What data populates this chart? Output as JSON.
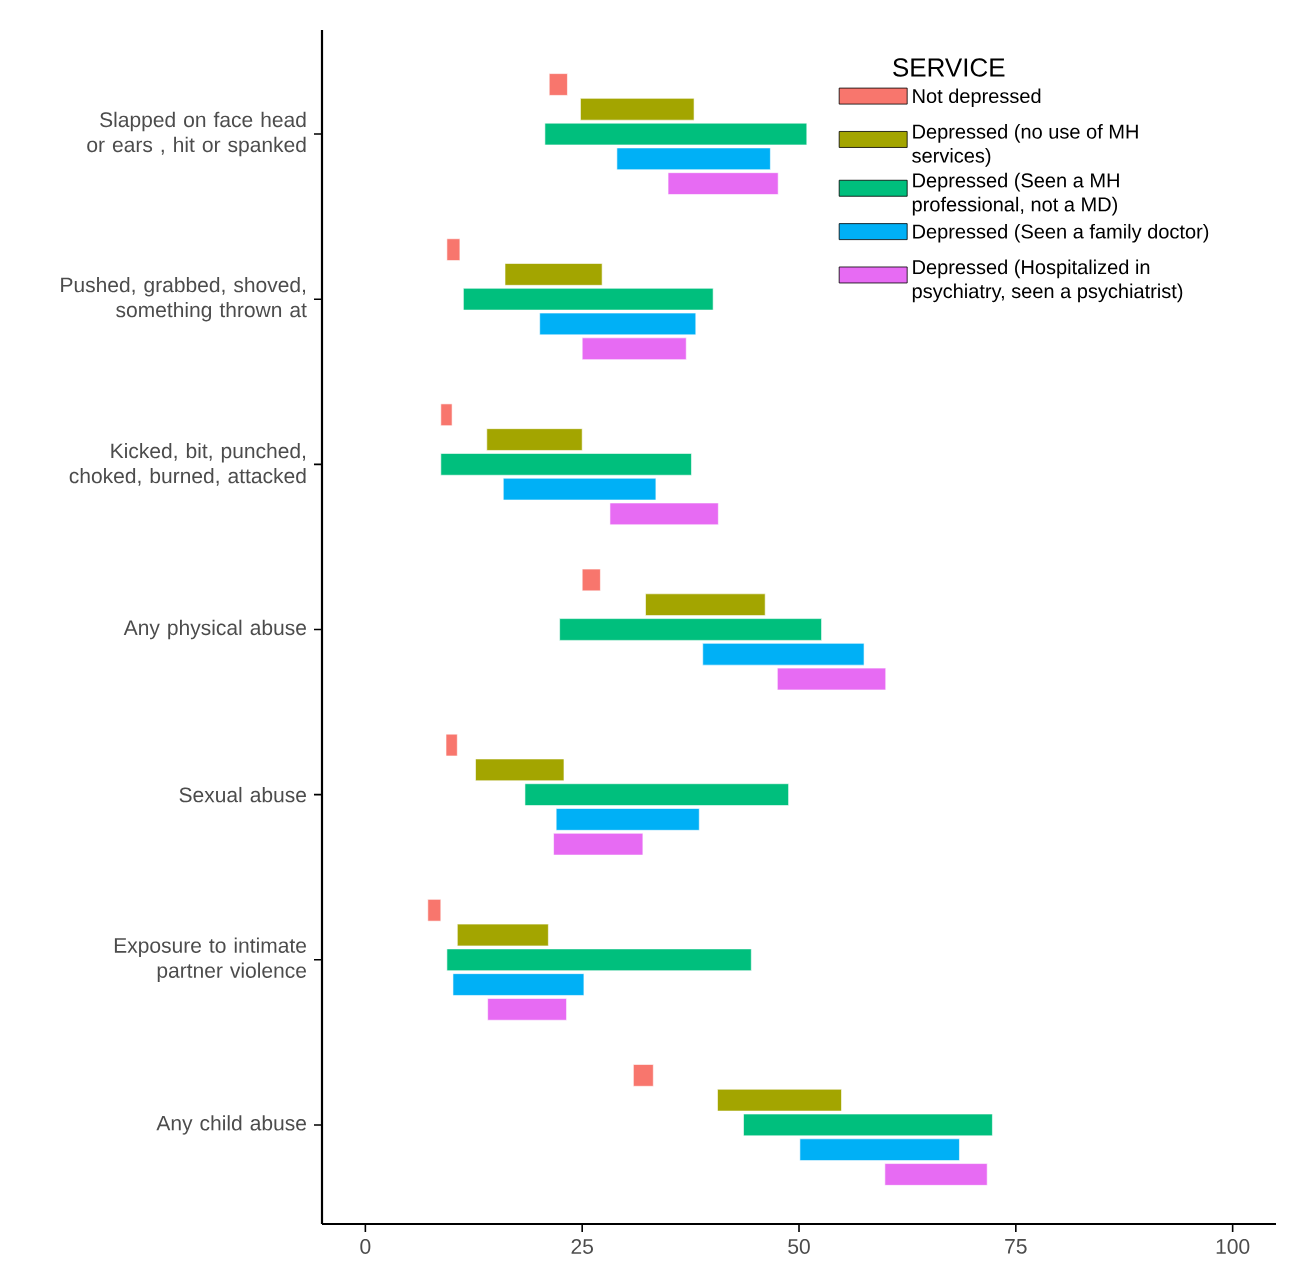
{
  "chart_data": {
    "type": "bar",
    "orientation": "horizontal",
    "legend": "top right",
    "legend_title": "SERVICE",
    "categories": [
      "Slapped on face head or ears , hit or spanked",
      "Pushed, grabbed, shoved, something thrown at",
      "Kicked, bit, punched, choked, burned, attacked",
      "Any physical abuse",
      "Sexual abuse",
      "Exposure to intimate partner violence",
      "Any child abuse"
    ],
    "series": [
      {
        "name": "Not depressed",
        "color": "#f8766d",
        "base": [
          21.2,
          9.4,
          8.7,
          25.0,
          9.3,
          7.2,
          30.9
        ],
        "values": [
          2.1,
          1.5,
          1.3,
          2.1,
          1.3,
          1.5,
          2.3
        ]
      },
      {
        "name": "Depressed (no use of MH services)",
        "color": "#a3a500",
        "base": [
          24.8,
          16.1,
          14.0,
          32.3,
          12.7,
          10.6,
          40.6
        ],
        "values": [
          13.1,
          11.2,
          11.0,
          13.8,
          10.2,
          10.5,
          14.3
        ]
      },
      {
        "name": "Depressed (Seen a MH professional, not a MD)",
        "color": "#00bf7d",
        "base": [
          20.7,
          11.3,
          8.7,
          22.4,
          18.4,
          9.4,
          43.6
        ],
        "values": [
          30.2,
          28.8,
          28.9,
          30.2,
          30.4,
          35.1,
          28.7
        ]
      },
      {
        "name": "Depressed (Seen a family doctor)",
        "color": "#00b0f6",
        "base": [
          29.0,
          20.1,
          15.9,
          38.9,
          22.0,
          10.1,
          50.1
        ],
        "values": [
          17.7,
          18.0,
          17.6,
          18.6,
          16.5,
          15.1,
          18.4
        ]
      },
      {
        "name": "Depressed (Hospitalized in psychiatry, seen a psychiatrist)",
        "color": "#e76bf3",
        "base": [
          34.9,
          25.0,
          28.2,
          47.5,
          21.7,
          14.1,
          59.9
        ],
        "values": [
          12.7,
          12.0,
          12.5,
          12.5,
          10.3,
          9.1,
          11.8
        ]
      }
    ],
    "xlim": [
      -5,
      105
    ],
    "xticks": [
      0,
      25,
      50,
      75,
      100
    ]
  }
}
